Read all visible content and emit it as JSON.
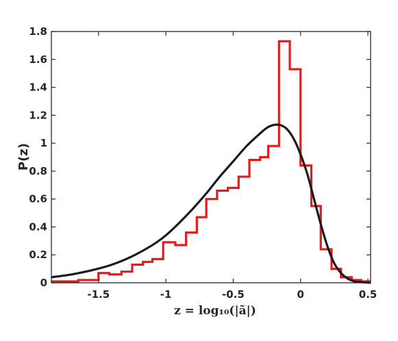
{
  "chart_data": {
    "type": "line",
    "title": "",
    "xlabel": "z = log₁₀(|ã|)",
    "ylabel": "P(z)",
    "xlim": [
      -1.85,
      0.52
    ],
    "ylim": [
      0,
      1.8
    ],
    "grid": false,
    "xticks": [
      -1.5,
      -1,
      -0.5,
      0,
      0.5
    ],
    "yticks": [
      0,
      0.2,
      0.4,
      0.6,
      0.8,
      1,
      1.2,
      1.4,
      1.6,
      1.8
    ],
    "xtick_labels": [
      "-1.5",
      "-1",
      "-0.5",
      "0",
      "0.5"
    ],
    "ytick_labels": [
      "0",
      "0.2",
      "0.4",
      "0.6",
      "0.8",
      "1",
      "1.2",
      "1.4",
      "1.6",
      "1.8"
    ],
    "series": [
      {
        "style": "step-histogram",
        "color": "#e8191c",
        "bin_edges": [
          -1.85,
          -1.75,
          -1.65,
          -1.5,
          -1.42,
          -1.33,
          -1.25,
          -1.17,
          -1.1,
          -1.02,
          -0.93,
          -0.85,
          -0.77,
          -0.7,
          -0.62,
          -0.54,
          -0.46,
          -0.38,
          -0.3,
          -0.24,
          -0.16,
          -0.08,
          0.0,
          0.08,
          0.15,
          0.23,
          0.3,
          0.38,
          0.45,
          0.52
        ],
        "values": [
          0.01,
          0.01,
          0.02,
          0.07,
          0.06,
          0.08,
          0.13,
          0.15,
          0.17,
          0.29,
          0.27,
          0.36,
          0.47,
          0.6,
          0.66,
          0.68,
          0.76,
          0.88,
          0.9,
          0.98,
          1.73,
          1.53,
          0.84,
          0.55,
          0.24,
          0.1,
          0.04,
          0.02,
          0.01
        ]
      },
      {
        "style": "smooth-curve",
        "color": "#1a1a1a",
        "x": [
          -1.85,
          -1.7,
          -1.55,
          -1.4,
          -1.25,
          -1.1,
          -1.0,
          -0.9,
          -0.8,
          -0.7,
          -0.6,
          -0.5,
          -0.4,
          -0.3,
          -0.25,
          -0.2,
          -0.15,
          -0.1,
          -0.05,
          0.0,
          0.05,
          0.1,
          0.15,
          0.2,
          0.25,
          0.3,
          0.35,
          0.4,
          0.45,
          0.52
        ],
        "y": [
          0.04,
          0.06,
          0.09,
          0.13,
          0.19,
          0.27,
          0.34,
          0.43,
          0.53,
          0.64,
          0.76,
          0.87,
          0.98,
          1.07,
          1.11,
          1.13,
          1.13,
          1.1,
          1.03,
          0.92,
          0.78,
          0.6,
          0.42,
          0.26,
          0.14,
          0.07,
          0.03,
          0.01,
          0.005,
          0.0
        ]
      }
    ]
  }
}
